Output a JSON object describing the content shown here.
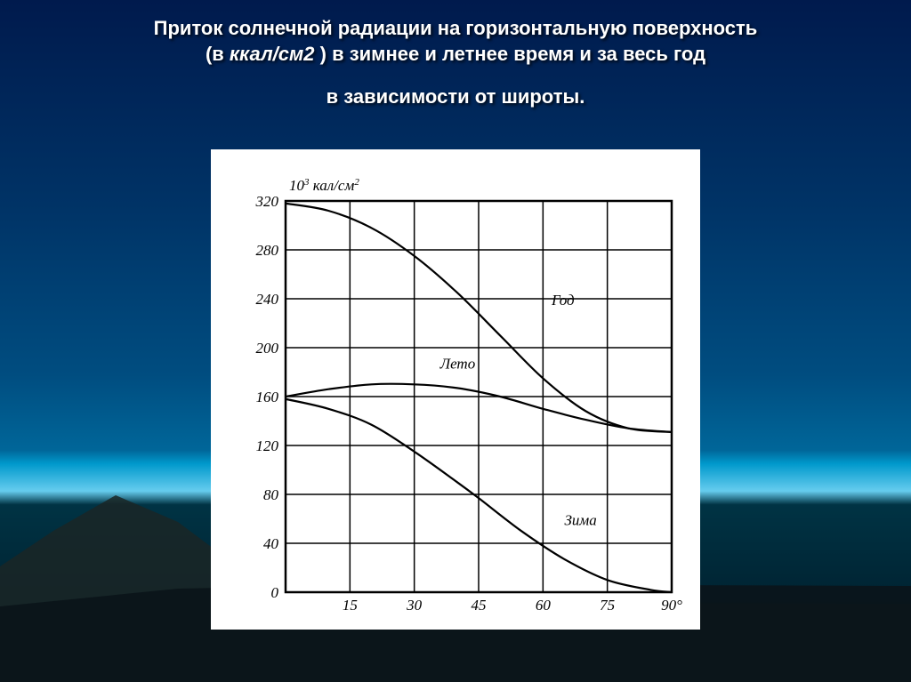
{
  "title": {
    "line1": "Приток солнечной радиации на горизонтальную поверхность",
    "line2_pre": "(в ",
    "line2_em": "ккал/см2",
    "line2_post": " ) в зимнее и летнее время и за весь год",
    "line3": "в зависимости от широты."
  },
  "chart": {
    "type": "line",
    "background_color": "#ffffff",
    "grid_color": "#000000",
    "axis_fontsize": 17,
    "label_fontsize": 17,
    "y_axis_unit_top": "10",
    "y_axis_unit_sup": "3",
    "y_axis_unit_tail": " кал/см",
    "y_axis_unit_tail_sup": "2",
    "xlim": [
      0,
      90
    ],
    "ylim": [
      0,
      320
    ],
    "x_ticks": [
      0,
      15,
      30,
      45,
      60,
      75,
      90
    ],
    "x_tick_labels": [
      "",
      "15",
      "30",
      "45",
      "60",
      "75",
      "90°"
    ],
    "y_ticks": [
      0,
      40,
      80,
      120,
      160,
      200,
      240,
      280,
      320
    ],
    "y_tick_labels": [
      "0",
      "40",
      "80",
      "120",
      "160",
      "200",
      "240",
      "280",
      "320"
    ],
    "series": [
      {
        "name": "Год",
        "label": "Год",
        "label_pos": {
          "x": 62,
          "y": 235
        },
        "color": "#000000",
        "line_width": 2.2,
        "points": [
          {
            "x": 0,
            "y": 318
          },
          {
            "x": 10,
            "y": 312
          },
          {
            "x": 20,
            "y": 298
          },
          {
            "x": 30,
            "y": 275
          },
          {
            "x": 40,
            "y": 245
          },
          {
            "x": 50,
            "y": 210
          },
          {
            "x": 60,
            "y": 175
          },
          {
            "x": 70,
            "y": 148
          },
          {
            "x": 80,
            "y": 134
          },
          {
            "x": 90,
            "y": 131
          }
        ]
      },
      {
        "name": "Лето",
        "label": "Лето",
        "label_pos": {
          "x": 36,
          "y": 183
        },
        "color": "#000000",
        "line_width": 2.2,
        "points": [
          {
            "x": 0,
            "y": 160
          },
          {
            "x": 10,
            "y": 166
          },
          {
            "x": 20,
            "y": 170
          },
          {
            "x": 30,
            "y": 170
          },
          {
            "x": 40,
            "y": 167
          },
          {
            "x": 50,
            "y": 160
          },
          {
            "x": 60,
            "y": 150
          },
          {
            "x": 70,
            "y": 141
          },
          {
            "x": 80,
            "y": 134
          },
          {
            "x": 90,
            "y": 131
          }
        ]
      },
      {
        "name": "Зима",
        "label": "Зима",
        "label_pos": {
          "x": 65,
          "y": 55
        },
        "color": "#000000",
        "line_width": 2.2,
        "points": [
          {
            "x": 0,
            "y": 158
          },
          {
            "x": 10,
            "y": 150
          },
          {
            "x": 20,
            "y": 137
          },
          {
            "x": 30,
            "y": 115
          },
          {
            "x": 40,
            "y": 90
          },
          {
            "x": 45,
            "y": 77
          },
          {
            "x": 55,
            "y": 50
          },
          {
            "x": 65,
            "y": 27
          },
          {
            "x": 75,
            "y": 10
          },
          {
            "x": 85,
            "y": 2
          },
          {
            "x": 90,
            "y": 0
          }
        ]
      }
    ]
  }
}
